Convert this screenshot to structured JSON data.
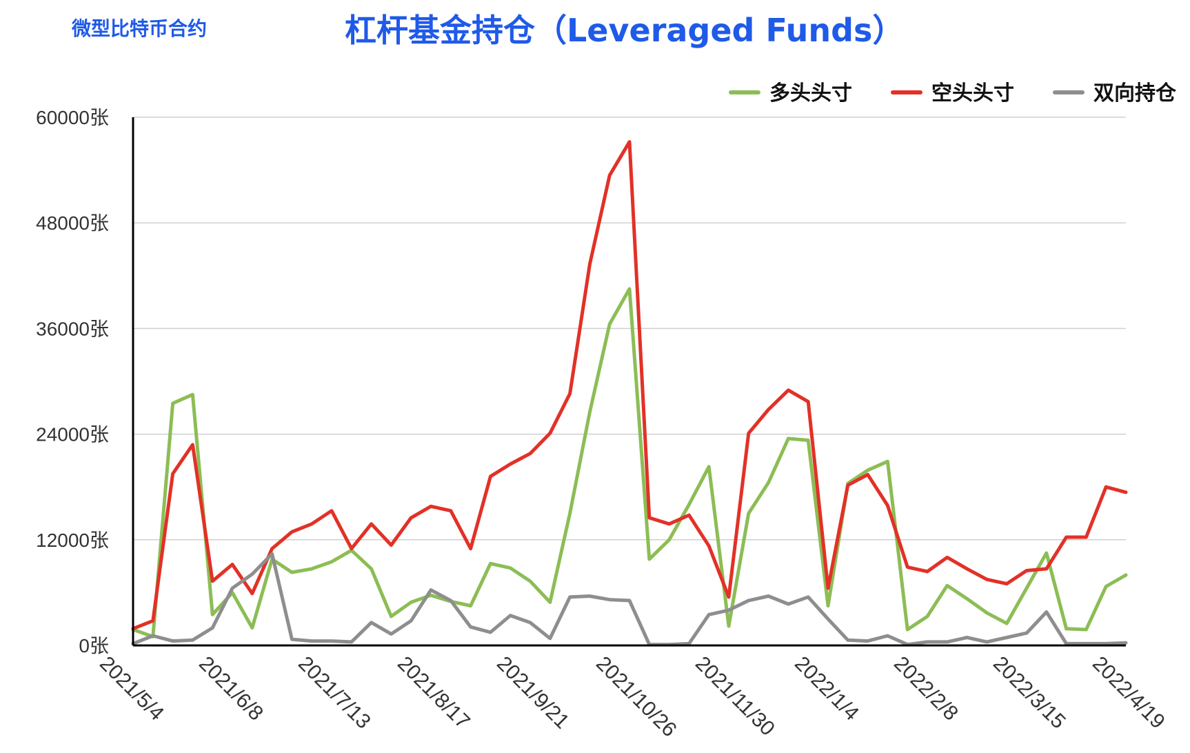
{
  "header": {
    "subtitle": "微型比特币合约",
    "title": "杠杆基金持仓（Leveraged Funds）"
  },
  "chart_data": {
    "type": "line",
    "y_unit": "张",
    "ylim": [
      0,
      60000
    ],
    "yticks": [
      0,
      12000,
      24000,
      36000,
      48000,
      60000
    ],
    "ytick_labels": [
      "0张",
      "12000张",
      "24000张",
      "36000张",
      "48000张",
      "60000张"
    ],
    "xtick_labels": [
      "2021/5/4",
      "2021/6/8",
      "2021/7/13",
      "2021/8/17",
      "2021/9/21",
      "2021/10/26",
      "2021/11/30",
      "2022/1/4",
      "2022/2/8",
      "2022/3/15",
      "2022/4/19"
    ],
    "xtick_indices": [
      0,
      5,
      10,
      15,
      20,
      25,
      30,
      35,
      40,
      45,
      50
    ],
    "grid": true,
    "legend_position": "top-right",
    "series": [
      {
        "name": "多头头寸",
        "color": "#8cbd55",
        "values": [
          1800,
          1000,
          27500,
          28500,
          3500,
          6000,
          2000,
          9800,
          8300,
          8700,
          9500,
          10800,
          8700,
          3300,
          4900,
          5700,
          5000,
          4500,
          9300,
          8800,
          7300,
          4900,
          15000,
          26500,
          36500,
          40500,
          9800,
          12000,
          16000,
          20300,
          2200,
          15000,
          18500,
          23500,
          23300,
          4500,
          18400,
          19900,
          20900,
          1800,
          3300,
          6800,
          5300,
          3700,
          2500,
          6500,
          10500,
          1900,
          1800,
          6700,
          8000
        ]
      },
      {
        "name": "空头头寸",
        "color": "#e23127",
        "values": [
          1900,
          2800,
          19500,
          22800,
          7300,
          9200,
          5900,
          11000,
          12900,
          13800,
          15300,
          11000,
          13800,
          11400,
          14500,
          15800,
          15300,
          11000,
          19200,
          20600,
          21800,
          24100,
          28600,
          43300,
          53400,
          57200,
          14500,
          13800,
          14800,
          11300,
          5500,
          24100,
          26800,
          29000,
          27700,
          6500,
          18200,
          19400,
          15900,
          8900,
          8400,
          10000,
          8700,
          7500,
          7000,
          8500,
          8700,
          12300,
          12300,
          18000,
          17400
        ]
      },
      {
        "name": "双向持仓",
        "color": "#8e8e8e",
        "values": [
          200,
          1100,
          500,
          600,
          2000,
          6500,
          8100,
          10400,
          700,
          500,
          500,
          400,
          2600,
          1300,
          2800,
          6300,
          5100,
          2100,
          1500,
          3400,
          2600,
          800,
          5500,
          5600,
          5200,
          5100,
          100,
          100,
          200,
          3500,
          4000,
          5100,
          5600,
          4700,
          5500,
          3000,
          600,
          500,
          1100,
          100,
          400,
          400,
          900,
          400,
          900,
          1400,
          3800,
          200,
          200,
          200,
          300
        ]
      }
    ]
  }
}
